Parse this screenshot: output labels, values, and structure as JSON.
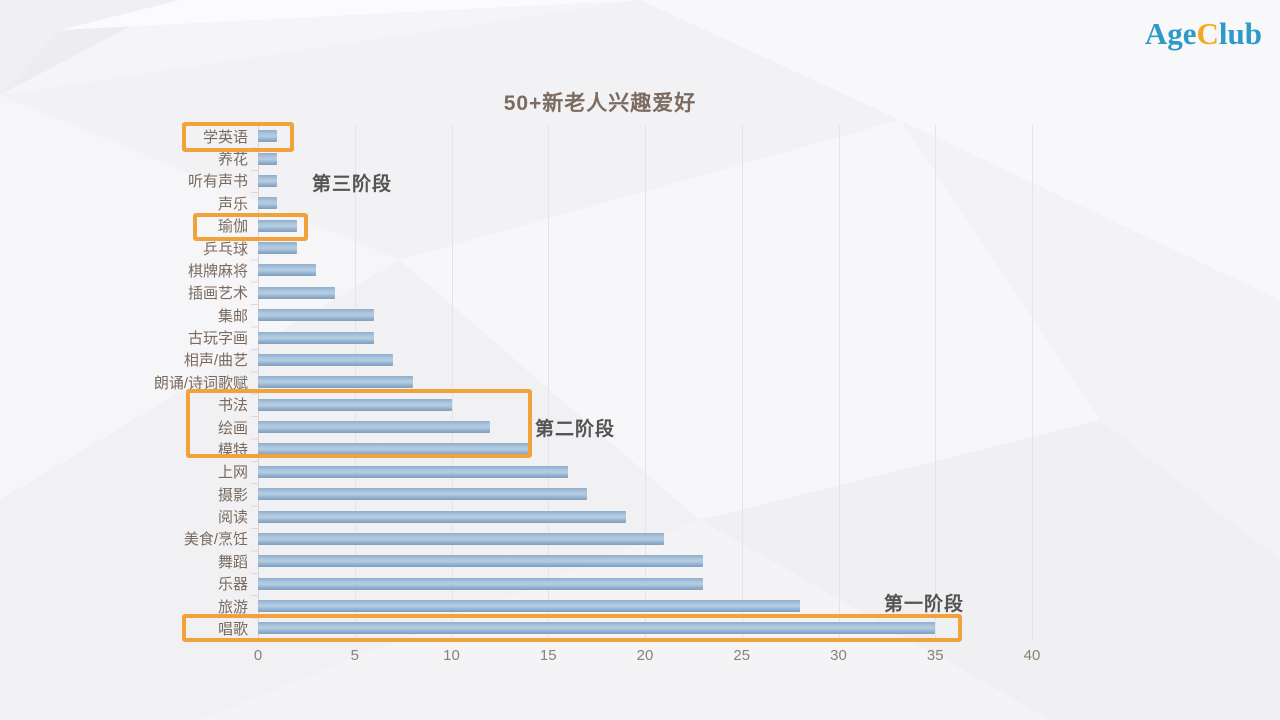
{
  "logo": {
    "part1": "Age",
    "part2": "C",
    "part3": "lub"
  },
  "chart_data": {
    "type": "bar",
    "orientation": "horizontal",
    "title": "50+新老人兴趣爱好",
    "categories": [
      "学英语",
      "养花",
      "听有声书",
      "声乐",
      "瑜伽",
      "乒乓球",
      "棋牌麻将",
      "插画艺术",
      "集邮",
      "古玩字画",
      "相声/曲艺",
      "朗诵/诗词歌赋",
      "书法",
      "绘画",
      "模特",
      "上网",
      "摄影",
      "阅读",
      "美食/烹饪",
      "舞蹈",
      "乐器",
      "旅游",
      "唱歌"
    ],
    "values": [
      1,
      1,
      1,
      1,
      2,
      2,
      3,
      4,
      6,
      6,
      7,
      8,
      10,
      12,
      14,
      16,
      17,
      19,
      21,
      23,
      23,
      28,
      35
    ],
    "xlim": [
      0,
      40
    ],
    "x_ticks": [
      0,
      5,
      10,
      15,
      20,
      25,
      30,
      35,
      40
    ],
    "grid": true,
    "bar_color": "#8fadcb",
    "legend": "none"
  },
  "annotations": {
    "stage3": "第三阶段",
    "stage2": "第二阶段",
    "stage1": "第一阶段"
  },
  "highlights": {
    "box1": "学英语",
    "box2": "瑜伽",
    "box3": "书法 / 绘画 / 模特",
    "box4": "唱歌",
    "color": "#f2a23b"
  },
  "colors": {
    "bar": "#8fadcb",
    "title_text": "#7c6b60",
    "logo_blue": "#2e9ac8",
    "logo_orange": "#f2ab21"
  }
}
